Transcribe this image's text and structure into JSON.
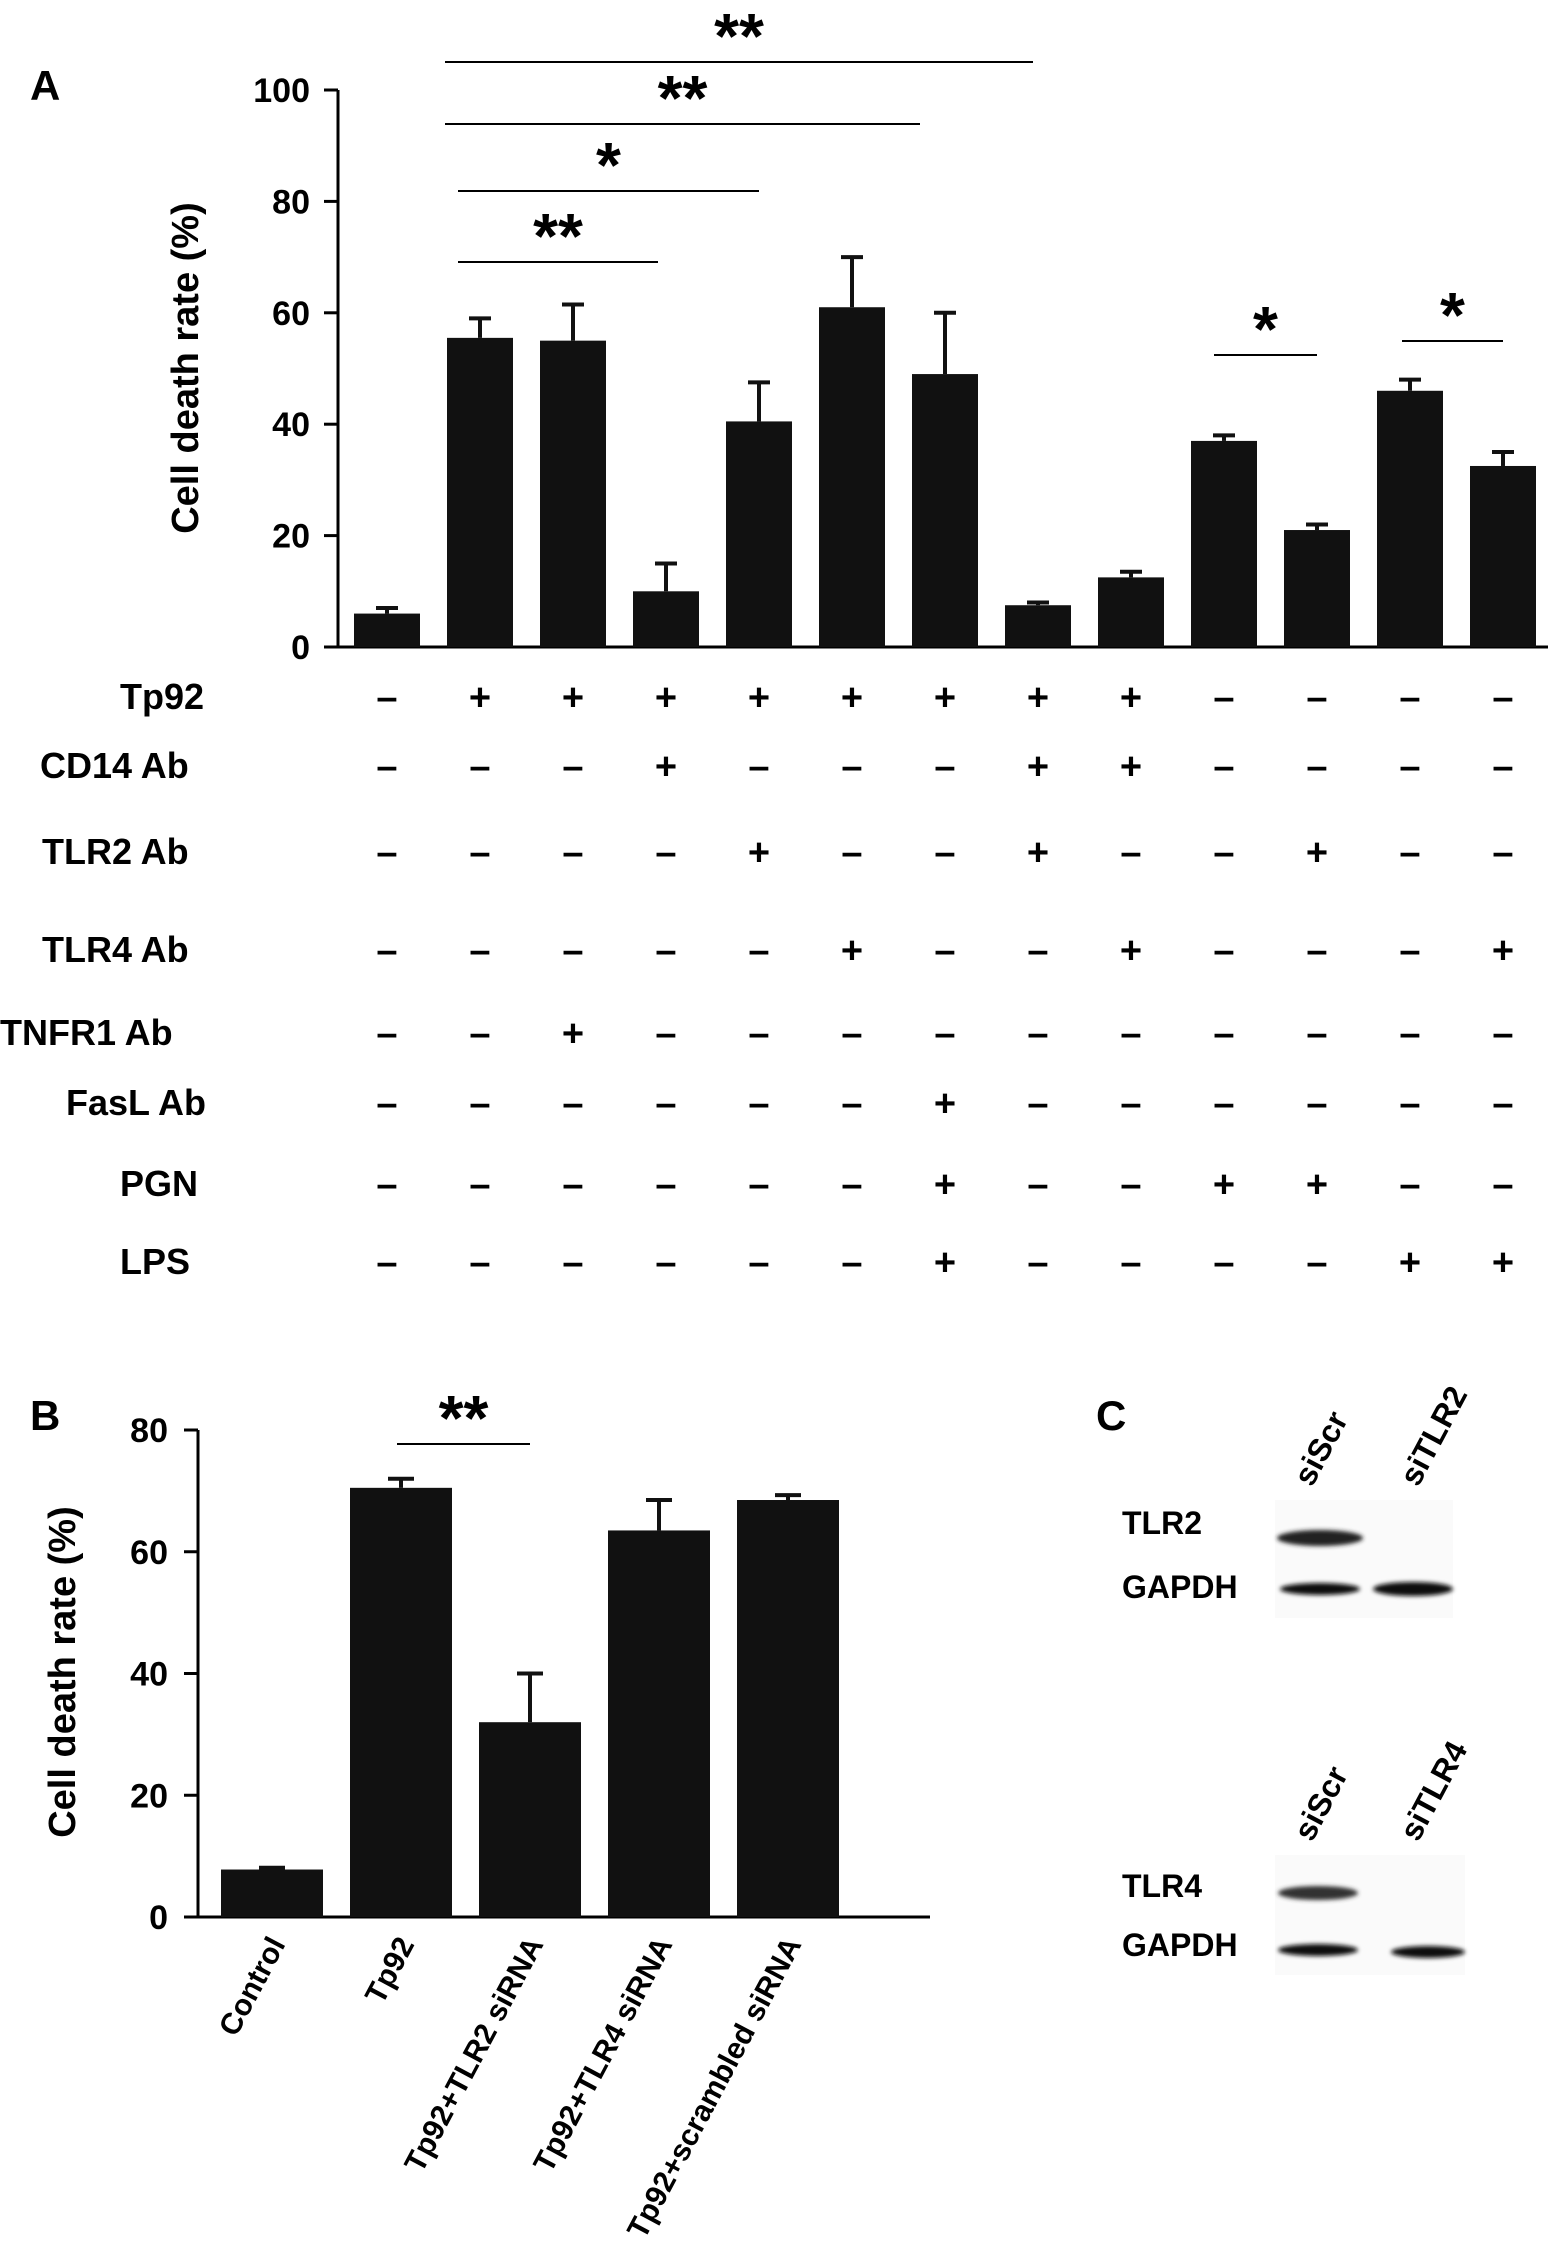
{
  "panels": {
    "a": "A",
    "b": "B",
    "c": "C"
  },
  "chart_data": [
    {
      "panel": "A",
      "type": "bar",
      "ylabel": "Cell death rate (%)",
      "ylim": [
        0,
        100
      ],
      "yticks": [
        0,
        20,
        40,
        60,
        80,
        100
      ],
      "values": [
        6,
        55.5,
        55,
        10,
        40.5,
        61,
        49,
        7.5,
        12.5,
        37,
        21,
        46,
        32.5
      ],
      "errors": [
        1,
        3.5,
        6.5,
        5,
        7,
        9,
        11,
        0.5,
        1,
        1,
        1,
        2,
        2.5
      ],
      "treatment_rows": [
        {
          "label": "Tp92",
          "signs": [
            "–",
            "+",
            "+",
            "+",
            "+",
            "+",
            "+",
            "+",
            "+",
            "–",
            "–",
            "–",
            "–"
          ]
        },
        {
          "label": "CD14 Ab",
          "signs": [
            "–",
            "–",
            "–",
            "+",
            "–",
            "–",
            "–",
            "+",
            "+",
            "–",
            "–",
            "–",
            "–"
          ]
        },
        {
          "label": "TLR2 Ab",
          "signs": [
            "–",
            "–",
            "–",
            "–",
            "+",
            "–",
            "–",
            "+",
            "–",
            "–",
            "+",
            "–",
            "–"
          ]
        },
        {
          "label": "TLR4 Ab",
          "signs": [
            "–",
            "–",
            "–",
            "–",
            "–",
            "+",
            "–",
            "–",
            "+",
            "–",
            "–",
            "–",
            "+"
          ]
        },
        {
          "label": "TNFR1 Ab",
          "signs": [
            "–",
            "–",
            "+",
            "–",
            "–",
            "–",
            "–",
            "–",
            "–",
            "–",
            "–",
            "–",
            "–"
          ]
        },
        {
          "label": "FasL Ab",
          "signs": [
            "–",
            "–",
            "–",
            "–",
            "–",
            "–",
            "+",
            "–",
            "–",
            "–",
            "–",
            "–",
            "–"
          ]
        },
        {
          "label": "PGN",
          "signs": [
            "–",
            "–",
            "–",
            "–",
            "–",
            "–",
            "+",
            "–",
            "–",
            "+",
            "+",
            "–",
            "–"
          ]
        },
        {
          "label": "LPS",
          "signs": [
            "–",
            "–",
            "–",
            "–",
            "–",
            "–",
            "+",
            "–",
            "–",
            "–",
            "–",
            "+",
            "+"
          ]
        }
      ],
      "significance": [
        {
          "from": 2,
          "to": 8,
          "mark": "**"
        },
        {
          "from": 2,
          "to": 7,
          "mark": "**"
        },
        {
          "from": 2,
          "to": 5,
          "mark": "*"
        },
        {
          "from": 2,
          "to": 4,
          "mark": "**"
        },
        {
          "from": 10,
          "to": 11,
          "mark": "*"
        },
        {
          "from": 12,
          "to": 13,
          "mark": "*"
        }
      ]
    },
    {
      "panel": "B",
      "type": "bar",
      "ylabel": "Cell death rate (%)",
      "ylim": [
        0,
        80
      ],
      "yticks": [
        0,
        20,
        40,
        60,
        80
      ],
      "categories": [
        "Control",
        "Tp92",
        "Tp92+TLR2 siRNA",
        "Tp92+TLR4 siRNA",
        "Tp92+scrambled siRNA"
      ],
      "values": [
        7.8,
        70.5,
        32,
        63.5,
        68.5
      ],
      "errors": [
        0.3,
        1.5,
        8,
        5,
        0.8
      ],
      "significance": [
        {
          "from": 2,
          "to": 3,
          "mark": "**"
        }
      ]
    }
  ],
  "blots": {
    "tlr2": {
      "lanes": [
        "siScr",
        "siTLR2"
      ],
      "rows": [
        "TLR2",
        "GAPDH"
      ]
    },
    "tlr4": {
      "lanes": [
        "siScr",
        "siTLR4"
      ],
      "rows": [
        "TLR4",
        "GAPDH"
      ]
    }
  }
}
